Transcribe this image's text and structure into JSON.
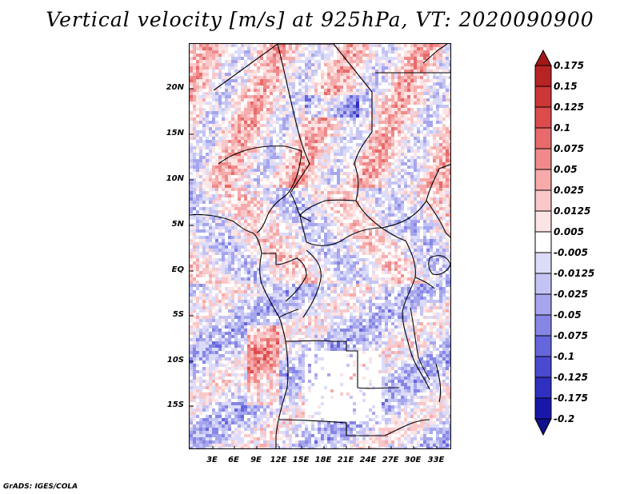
{
  "title": "Vertical velocity [m/s] at 925hPa, VT: 2020090900",
  "credit": "GrADS: IGES/COLA",
  "map": {
    "lat_ticks": [
      "20N",
      "15N",
      "10N",
      "5N",
      "EQ",
      "5S",
      "10S",
      "15S"
    ],
    "lon_ticks": [
      "3E",
      "6E",
      "9E",
      "12E",
      "15E",
      "18E",
      "21E",
      "24E",
      "27E",
      "30E",
      "33E"
    ]
  },
  "colorbar": {
    "labels": [
      "0.175",
      "0.15",
      "0.125",
      "0.1",
      "0.075",
      "0.05",
      "0.025",
      "0.0125",
      "0.005",
      "-0.005",
      "-0.0125",
      "-0.025",
      "-0.05",
      "-0.075",
      "-0.1",
      "-0.125",
      "-0.175",
      "-0.2"
    ],
    "colors": [
      "#a01818",
      "#b82424",
      "#cc3636",
      "#dc4c4c",
      "#e86a6a",
      "#f08a8a",
      "#f6aaaa",
      "#fac8c8",
      "#fde4e4",
      "#ffffff",
      "#dcdcfa",
      "#c4c4f4",
      "#a6a6ee",
      "#8686e6",
      "#6666dc",
      "#4a4ad0",
      "#3030c0",
      "#1818a8",
      "#10108c"
    ]
  },
  "chart_data": {
    "type": "heatmap",
    "title": "Vertical velocity [m/s] at 925hPa, VT: 2020090900",
    "variable": "Vertical velocity",
    "units": "m/s",
    "level": "925hPa",
    "valid_time": "2020090900",
    "lon_range": [
      "0E",
      "34.5E"
    ],
    "lat_range": [
      "19.5S",
      "24.5N"
    ],
    "contour_levels": [
      -0.2,
      -0.175,
      -0.125,
      -0.1,
      -0.075,
      -0.05,
      -0.025,
      -0.0125,
      -0.005,
      0.005,
      0.0125,
      0.025,
      0.05,
      0.075,
      0.1,
      0.125,
      0.15,
      0.175
    ]
  }
}
